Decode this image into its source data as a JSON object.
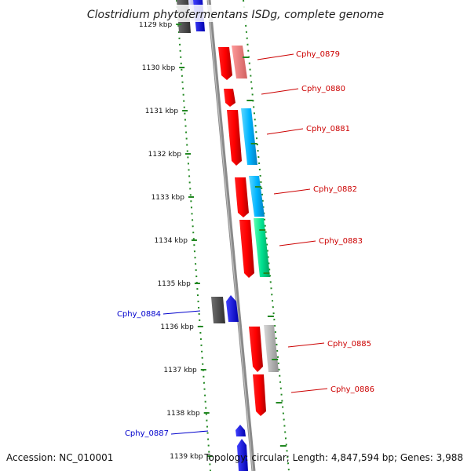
{
  "title": "Clostridium phytofermentans ISDg, complete genome",
  "accession": "Accession: NC_010001",
  "topology": "Topology: circular; Length: 4,847,594 bp; Genes: 3,988",
  "kbp_ticks": [
    "1129 kbp",
    "1130 kbp",
    "1131 kbp",
    "1132 kbp",
    "1133 kbp",
    "1134 kbp",
    "1135 kbp",
    "1136 kbp",
    "1137 kbp",
    "1138 kbp",
    "1139 kbp"
  ],
  "gene_labels": [
    {
      "text": "Cphy_0879",
      "strand": "forward"
    },
    {
      "text": "Cphy_0880",
      "strand": "forward"
    },
    {
      "text": "Cphy_0881",
      "strand": "forward"
    },
    {
      "text": "Cphy_0882",
      "strand": "forward"
    },
    {
      "text": "Cphy_0883",
      "strand": "forward"
    },
    {
      "text": "Cphy_0884",
      "strand": "reverse"
    },
    {
      "text": "Cphy_0885",
      "strand": "forward"
    },
    {
      "text": "Cphy_0886",
      "strand": "forward"
    },
    {
      "text": "Cphy_0887",
      "strand": "reverse"
    }
  ],
  "colors": {
    "forward_label": "#cc0000",
    "reverse_label": "#0000cc",
    "backbone": "#808080",
    "tick": "#228822"
  }
}
